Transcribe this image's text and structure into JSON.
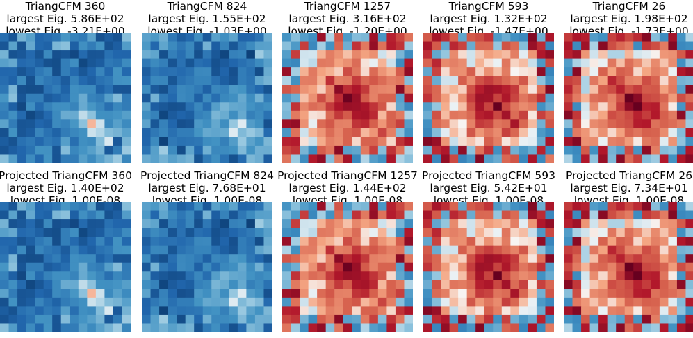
{
  "colormap": {
    "low": "#053061",
    "mid": "#f7f7f7",
    "high": "#67001f"
  },
  "panels": [
    {
      "title": "TriangCFM 360",
      "largest": "largest Eig. 5.86E+02",
      "lowest": "lowest Eig. -3.21E+00",
      "pattern": "blue",
      "seed": 11
    },
    {
      "title": "TriangCFM 824",
      "largest": "largest Eig. 1.55E+02",
      "lowest": "lowest Eig. -1.03E+00",
      "pattern": "blue",
      "seed": 27
    },
    {
      "title": "TriangCFM 1257",
      "largest": "largest Eig. 3.16E+02",
      "lowest": "lowest Eig. -1.20E+00",
      "pattern": "red",
      "seed": 43
    },
    {
      "title": "TriangCFM 593",
      "largest": "largest Eig. 1.32E+02",
      "lowest": "lowest Eig. -1.47E+00",
      "pattern": "red",
      "seed": 59
    },
    {
      "title": "TriangCFM 26",
      "largest": "largest Eig. 1.98E+02",
      "lowest": "lowest Eig. -1.73E+00",
      "pattern": "red",
      "seed": 71
    },
    {
      "title": "Projected TriangCFM 360",
      "largest": "largest Eig. 1.40E+02",
      "lowest": "lowest Eig. 1.00E-08",
      "pattern": "blue",
      "seed": 11
    },
    {
      "title": "Projected TriangCFM 824",
      "largest": "largest Eig. 7.68E+01",
      "lowest": "lowest Eig. 1.00E-08",
      "pattern": "blue",
      "seed": 27
    },
    {
      "title": "Projected TriangCFM 1257",
      "largest": "largest Eig. 1.44E+02",
      "lowest": "lowest Eig. 1.00E-08",
      "pattern": "red",
      "seed": 43
    },
    {
      "title": "Projected TriangCFM 593",
      "largest": "largest Eig. 5.42E+01",
      "lowest": "lowest Eig. 1.00E-08",
      "pattern": "red",
      "seed": 59
    },
    {
      "title": "Projected TriangCFM 26",
      "largest": "largest Eig. 7.34E+01",
      "lowest": "lowest Eig. 1.00E-08",
      "pattern": "red",
      "seed": 71
    }
  ]
}
